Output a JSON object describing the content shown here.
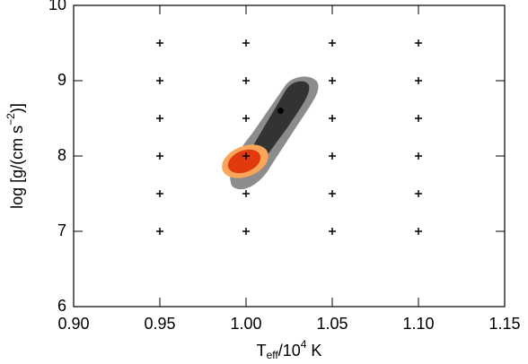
{
  "chart_data": {
    "type": "scatter",
    "xlabel": {
      "base": "T",
      "sub": "eff",
      "mid": "/10",
      "sup": "4",
      "end": " K"
    },
    "ylabel": {
      "base": "log [g/(cm s",
      "sup": "−2",
      "end": ")]"
    },
    "xlim": [
      0.9,
      1.15
    ],
    "xticks": [
      {
        "value": 0.9,
        "label": "0.90"
      },
      0.95,
      {
        "value": 1.0,
        "label": "1.00"
      },
      1.05,
      {
        "value": 1.1,
        "label": "1.10"
      },
      1.15
    ],
    "ylim": [
      6,
      10
    ],
    "yticks": [
      6,
      7,
      8,
      9,
      10
    ],
    "series": [
      {
        "color": "#000000",
        "marker": "plus",
        "x": [
          0.95,
          0.95,
          0.95,
          0.95,
          0.95,
          0.95,
          1.0,
          1.0,
          1.0,
          1.0,
          1.0,
          1.0,
          1.05,
          1.05,
          1.05,
          1.05,
          1.05,
          1.05,
          1.1,
          1.1,
          1.1,
          1.1,
          1.1,
          1.1
        ],
        "y": [
          7,
          7.5,
          8,
          8.5,
          9,
          9.5,
          7,
          7.5,
          8,
          8.5,
          9,
          9.5,
          7,
          7.5,
          8,
          8.5,
          9,
          9.5,
          7,
          7.5,
          8,
          8.5,
          9,
          9.5
        ]
      },
      {
        "color": "#000000",
        "marker": "dot",
        "x": [
          1.02
        ],
        "y": [
          8.6
        ]
      }
    ]
  }
}
